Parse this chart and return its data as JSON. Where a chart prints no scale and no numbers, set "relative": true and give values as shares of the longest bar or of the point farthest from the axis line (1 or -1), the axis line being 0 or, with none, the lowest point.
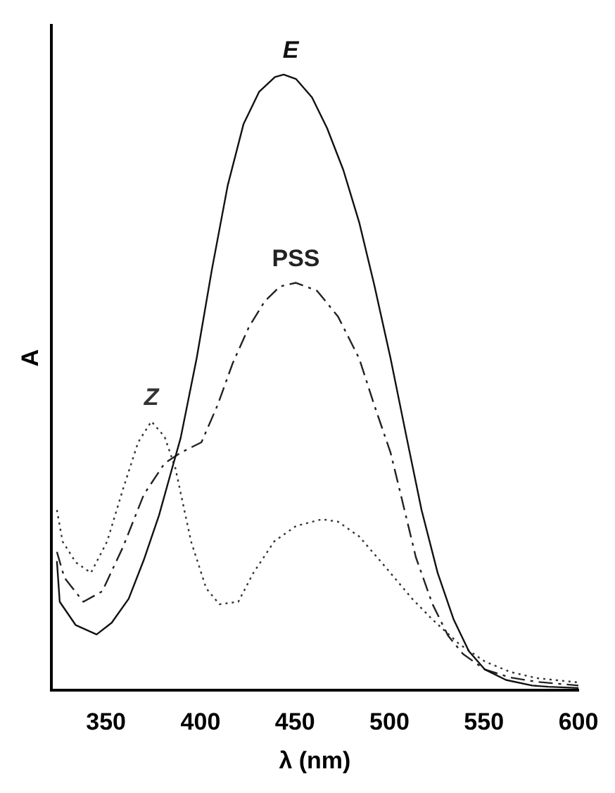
{
  "chart_data": {
    "type": "line",
    "relative": true,
    "xlabel": "λ (nm)",
    "ylabel": "A",
    "xlim": [
      321,
      600
    ],
    "xticks": [
      350,
      400,
      450,
      500,
      550,
      600
    ],
    "grid": false,
    "legend": false,
    "marker": "none",
    "series": [
      {
        "name": "E",
        "color": "#111111",
        "line_style": "solid",
        "x": [
          324,
          325.5,
          334,
          345,
          353,
          362,
          370,
          378,
          385,
          389.5,
          398,
          406,
          414.4,
          422.8,
          431,
          439.4,
          444,
          450.5,
          459,
          467,
          475.6,
          484,
          492,
          500.6,
          509,
          517,
          525.5,
          534,
          542,
          550.5,
          561.7,
          575.5,
          584,
          600
        ],
        "values": [
          0.21,
          0.144,
          0.106,
          0.091,
          0.11,
          0.149,
          0.212,
          0.284,
          0.361,
          0.41,
          0.54,
          0.683,
          0.82,
          0.92,
          0.972,
          0.996,
          1,
          0.993,
          0.963,
          0.913,
          0.845,
          0.76,
          0.658,
          0.539,
          0.412,
          0.293,
          0.191,
          0.115,
          0.064,
          0.034,
          0.017,
          0.008,
          0.006,
          0.004
        ]
      },
      {
        "name": "PSS",
        "color": "#222222",
        "line_style": "dashed",
        "x": [
          324,
          328,
          338,
          348,
          359,
          370,
          381,
          389.5,
          400.5,
          409,
          417,
          425.6,
          434,
          442,
          450.5,
          461.7,
          472.8,
          484,
          492,
          500.6,
          506,
          514,
          522.8,
          531,
          539,
          550.5,
          564,
          578,
          600
        ],
        "values": [
          0.225,
          0.183,
          0.144,
          0.161,
          0.233,
          0.318,
          0.369,
          0.386,
          0.403,
          0.463,
          0.531,
          0.59,
          0.632,
          0.656,
          0.662,
          0.649,
          0.607,
          0.539,
          0.463,
          0.386,
          0.318,
          0.216,
          0.14,
          0.089,
          0.059,
          0.034,
          0.021,
          0.014,
          0.008
        ]
      },
      {
        "name": "Z",
        "color": "#333333",
        "line_style": "dotted",
        "x": [
          324,
          327,
          334,
          342,
          350.6,
          359,
          367,
          374,
          381,
          386.7,
          395,
          403,
          410,
          420,
          428,
          439,
          450.5,
          464.4,
          472.8,
          484,
          498,
          512,
          522.8,
          536.7,
          550.5,
          564,
          578,
          600
        ],
        "values": [
          0.293,
          0.242,
          0.208,
          0.191,
          0.242,
          0.327,
          0.403,
          0.437,
          0.412,
          0.361,
          0.242,
          0.166,
          0.14,
          0.144,
          0.191,
          0.242,
          0.267,
          0.278,
          0.274,
          0.25,
          0.2,
          0.149,
          0.115,
          0.076,
          0.047,
          0.03,
          0.02,
          0.013
        ]
      }
    ]
  }
}
